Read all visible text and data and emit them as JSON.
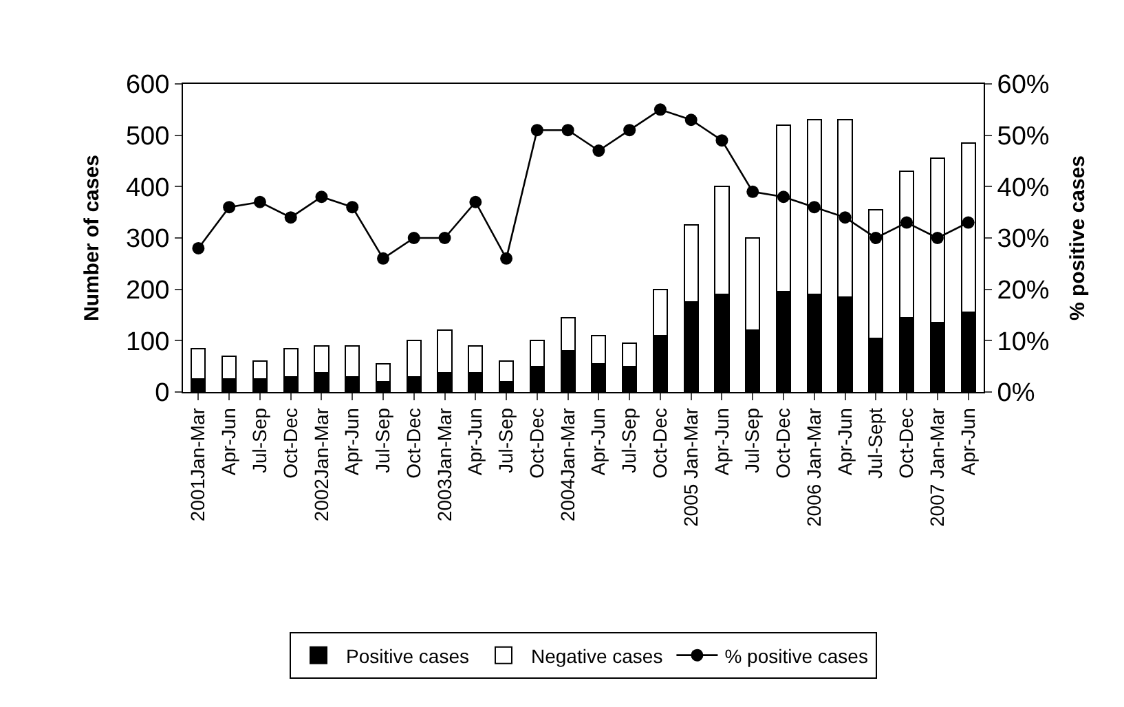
{
  "chart_data": {
    "type": "bar",
    "stacked": true,
    "ylabel": "Number of cases",
    "y2label": "% positive cases",
    "categories": [
      "2001Jan-Mar",
      "Apr-Jun",
      "Jul-Sep",
      "Oct-Dec",
      "2002Jan-Mar",
      "Apr-Jun",
      "Jul-Sep",
      "Oct-Dec",
      "2003Jan-Mar",
      "Apr-Jun",
      "Jul-Sep",
      "Oct-Dec",
      "2004Jan-Mar",
      "Apr-Jun",
      "Jul-Sep",
      "Oct-Dec",
      "2005 Jan-Mar",
      "Apr-Jun",
      "Jul-Sep",
      "Oct-Dec",
      "2006 Jan-Mar",
      "Apr-Jun",
      "Jul-Sept",
      "Oct-Dec",
      "2007 Jan-Mar",
      "Apr-Jun"
    ],
    "series": [
      {
        "name": "Positive cases",
        "color": "#000000",
        "values": [
          25,
          25,
          25,
          30,
          38,
          30,
          20,
          30,
          38,
          38,
          20,
          50,
          80,
          55,
          50,
          110,
          175,
          190,
          120,
          195,
          190,
          185,
          105,
          145,
          135,
          155
        ]
      },
      {
        "name": "Negative cases",
        "color": "#ffffff",
        "values": [
          60,
          45,
          35,
          55,
          52,
          60,
          35,
          70,
          82,
          52,
          40,
          50,
          65,
          55,
          45,
          90,
          150,
          210,
          180,
          325,
          340,
          345,
          250,
          285,
          320,
          330
        ]
      },
      {
        "name": "% positive cases",
        "type": "line",
        "axis": "y2",
        "color": "#000000",
        "marker": "circle",
        "line_style": "solid",
        "values": [
          28,
          36,
          37,
          34,
          38,
          36,
          26,
          30,
          30,
          37,
          26,
          51,
          51,
          47,
          51,
          55,
          53,
          49,
          39,
          38,
          36,
          34,
          30,
          33,
          30,
          33
        ]
      }
    ],
    "ylim": [
      0,
      600
    ],
    "yticks": [
      0,
      100,
      200,
      300,
      400,
      500,
      600
    ],
    "y2lim": [
      0,
      60
    ],
    "y2ticks": [
      {
        "value": 0,
        "label": "0%"
      },
      {
        "value": 10,
        "label": "10%"
      },
      {
        "value": 20,
        "label": "20%"
      },
      {
        "value": 30,
        "label": "30%"
      },
      {
        "value": 40,
        "label": "40%"
      },
      {
        "value": 50,
        "label": "50%"
      },
      {
        "value": 60,
        "label": "60%"
      }
    ],
    "legend": "bottom"
  }
}
